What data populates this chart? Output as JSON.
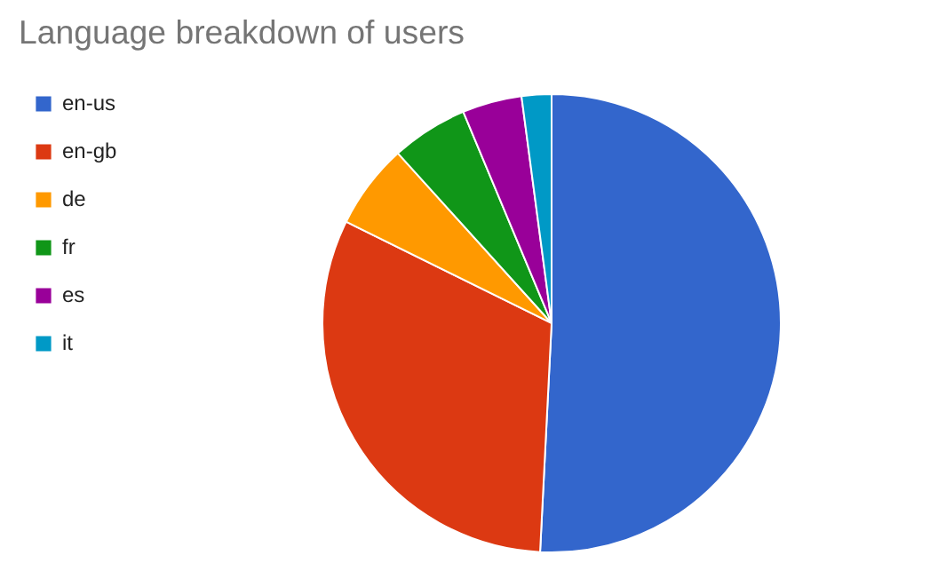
{
  "chart_data": {
    "type": "pie",
    "title": "Language breakdown of users",
    "categories": [
      "en-us",
      "en-gb",
      "de",
      "fr",
      "es",
      "it"
    ],
    "values": [
      50.8,
      31.5,
      6.0,
      5.4,
      4.2,
      2.1
    ],
    "colors": [
      "#3366cc",
      "#dc3912",
      "#ff9900",
      "#109618",
      "#990099",
      "#0099c6"
    ],
    "legend": "left"
  }
}
